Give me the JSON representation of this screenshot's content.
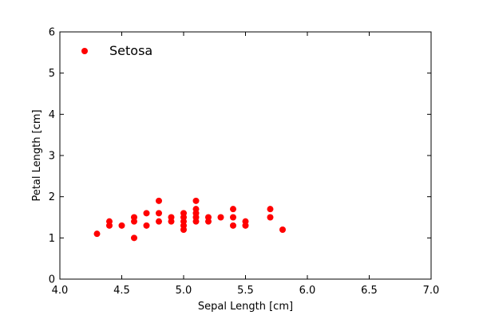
{
  "chart_data": {
    "type": "scatter",
    "xlabel": "Sepal Length [cm]",
    "ylabel": "Petal Length [cm]",
    "xlim": [
      4.0,
      7.0
    ],
    "ylim": [
      0,
      6
    ],
    "xticks": [
      "4.0",
      "4.5",
      "5.0",
      "5.5",
      "6.0",
      "6.5",
      "7.0"
    ],
    "yticks": [
      "0",
      "1",
      "2",
      "3",
      "4",
      "5",
      "6"
    ],
    "grid": false,
    "legend_position": "top-left",
    "series": [
      {
        "name": "Setosa",
        "color": "#ff0000",
        "points": [
          [
            4.3,
            1.1
          ],
          [
            4.4,
            1.3
          ],
          [
            4.4,
            1.4
          ],
          [
            4.5,
            1.3
          ],
          [
            4.6,
            1.0
          ],
          [
            4.6,
            1.4
          ],
          [
            4.6,
            1.5
          ],
          [
            4.7,
            1.3
          ],
          [
            4.7,
            1.6
          ],
          [
            4.8,
            1.4
          ],
          [
            4.8,
            1.6
          ],
          [
            4.8,
            1.9
          ],
          [
            4.9,
            1.4
          ],
          [
            4.9,
            1.5
          ],
          [
            5.0,
            1.2
          ],
          [
            5.0,
            1.3
          ],
          [
            5.0,
            1.4
          ],
          [
            5.0,
            1.5
          ],
          [
            5.0,
            1.6
          ],
          [
            5.1,
            1.4
          ],
          [
            5.1,
            1.5
          ],
          [
            5.1,
            1.6
          ],
          [
            5.1,
            1.7
          ],
          [
            5.1,
            1.9
          ],
          [
            5.2,
            1.4
          ],
          [
            5.2,
            1.5
          ],
          [
            5.3,
            1.5
          ],
          [
            5.4,
            1.3
          ],
          [
            5.4,
            1.5
          ],
          [
            5.4,
            1.7
          ],
          [
            5.5,
            1.3
          ],
          [
            5.5,
            1.4
          ],
          [
            5.7,
            1.5
          ],
          [
            5.7,
            1.7
          ],
          [
            5.8,
            1.2
          ]
        ]
      }
    ]
  }
}
